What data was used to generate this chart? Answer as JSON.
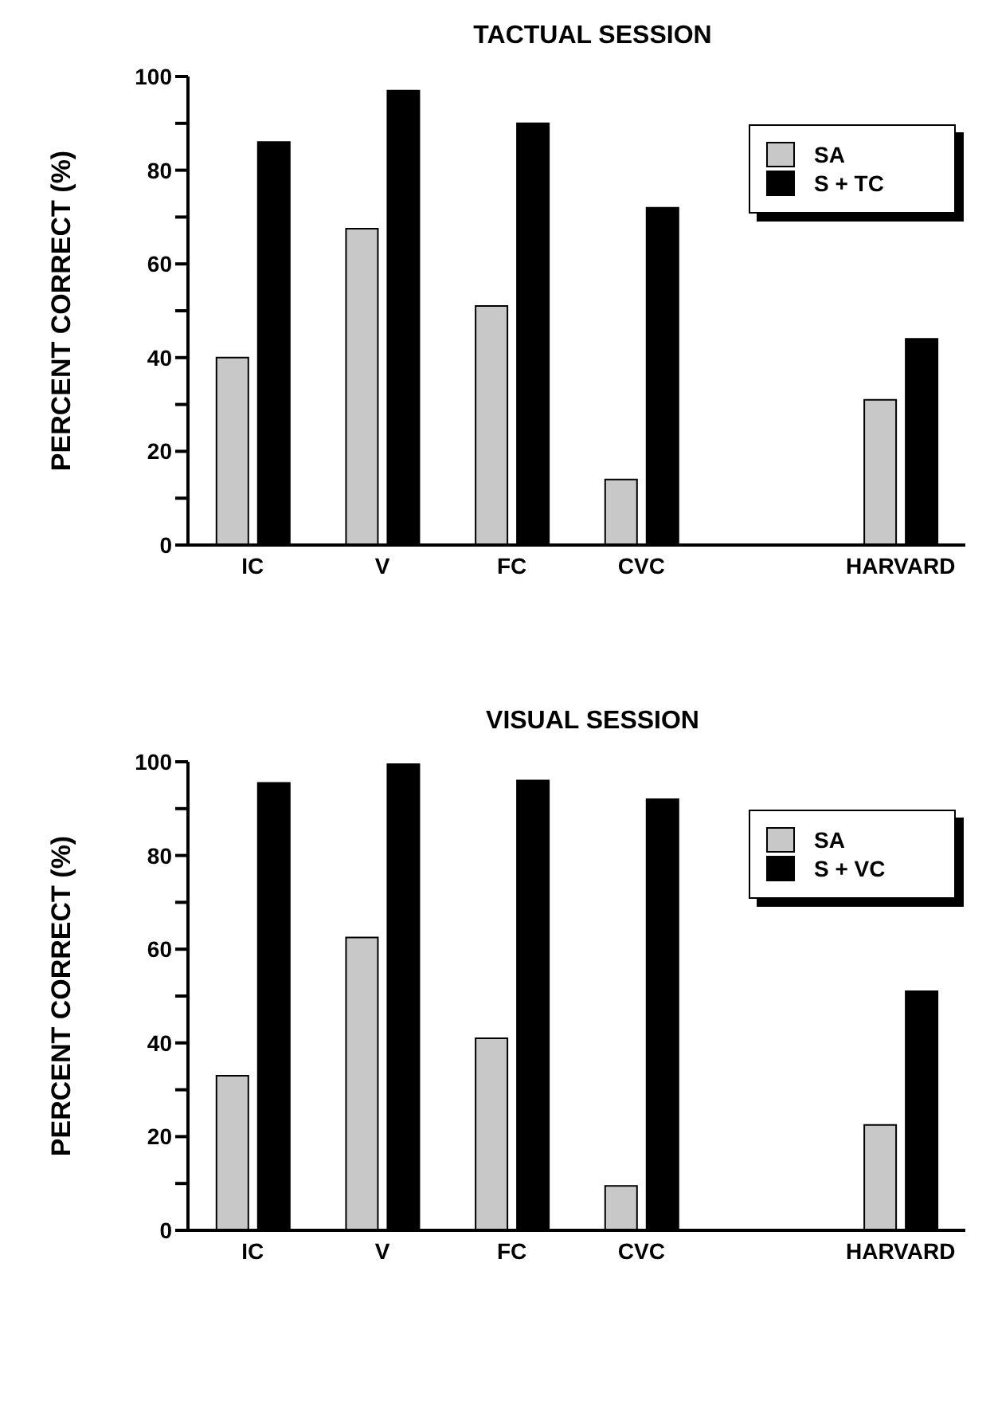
{
  "chart_data": [
    {
      "type": "bar",
      "title": "TACTUAL SESSION",
      "ylabel": "PERCENT CORRECT (%)",
      "categories": [
        "IC",
        "V",
        "FC",
        "CVC",
        null,
        "HARVARD"
      ],
      "series": [
        {
          "name": "SA",
          "color": "#c8c8c8",
          "values": [
            40,
            67.5,
            51,
            14,
            null,
            31
          ]
        },
        {
          "name": "S + TC",
          "color": "#000000",
          "values": [
            86,
            97,
            90,
            72,
            null,
            44
          ]
        }
      ],
      "ylim": [
        0,
        100
      ],
      "yticks": [
        0,
        {
          "value": 10,
          "label": null
        },
        20,
        {
          "value": 30,
          "label": null
        },
        40,
        {
          "value": 50,
          "label": null
        },
        60,
        {
          "value": 70,
          "label": null
        },
        80,
        {
          "value": 90,
          "label": null
        },
        100
      ],
      "grid": false,
      "legend": "top right"
    },
    {
      "type": "bar",
      "title": "VISUAL SESSION",
      "ylabel": "PERCENT CORRECT (%)",
      "categories": [
        "IC",
        "V",
        "FC",
        "CVC",
        null,
        "HARVARD"
      ],
      "series": [
        {
          "name": "SA",
          "color": "#c8c8c8",
          "values": [
            33,
            62.5,
            41,
            9.5,
            null,
            22.5
          ]
        },
        {
          "name": "S + VC",
          "color": "#000000",
          "values": [
            95.5,
            99.5,
            96,
            92,
            null,
            51
          ]
        }
      ],
      "ylim": [
        0,
        100
      ],
      "yticks": [
        0,
        {
          "value": 10,
          "label": null
        },
        20,
        {
          "value": 30,
          "label": null
        },
        40,
        {
          "value": 50,
          "label": null
        },
        60,
        {
          "value": 70,
          "label": null
        },
        80,
        {
          "value": 90,
          "label": null
        },
        100
      ],
      "grid": false,
      "legend": "top right"
    }
  ]
}
